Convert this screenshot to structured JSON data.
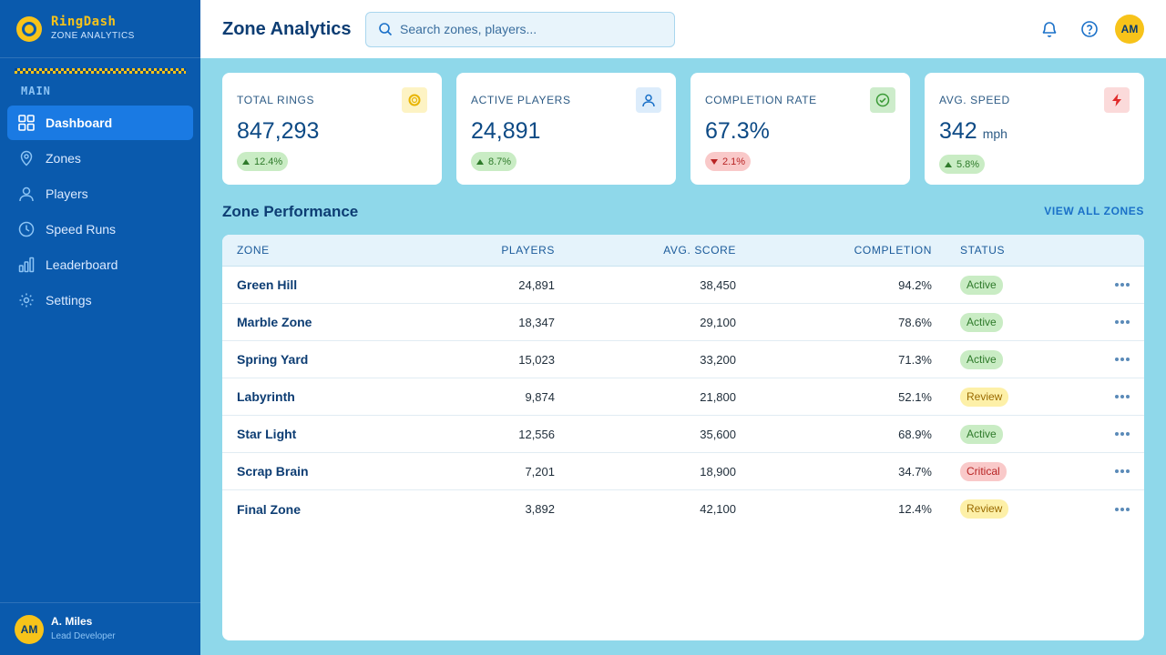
{
  "brand": {
    "name": "RingDash",
    "subtitle": "ZONE ANALYTICS"
  },
  "sidebar": {
    "section": "MAIN",
    "items": [
      {
        "label": "Dashboard",
        "icon": "grid-icon",
        "active": true
      },
      {
        "label": "Zones",
        "icon": "map-pin-icon"
      },
      {
        "label": "Players",
        "icon": "user-icon"
      },
      {
        "label": "Speed Runs",
        "icon": "clock-icon"
      },
      {
        "label": "Leaderboard",
        "icon": "bar-chart-icon"
      },
      {
        "label": "Settings",
        "icon": "gear-icon"
      }
    ],
    "user": {
      "initials": "AM",
      "name": "A. Miles",
      "role": "Lead Developer"
    }
  },
  "header": {
    "title": "Zone Analytics",
    "search_placeholder": "Search zones, players...",
    "avatar_initials": "AM"
  },
  "stats": [
    {
      "label": "TOTAL RINGS",
      "value": "847,293",
      "unit": "",
      "delta": "12.4%",
      "direction": "up",
      "icon": "ring-icon",
      "icon_bg": "#fdf3c4",
      "icon_color": "#e8b400"
    },
    {
      "label": "ACTIVE PLAYERS",
      "value": "24,891",
      "unit": "",
      "delta": "8.7%",
      "direction": "up",
      "icon": "user-icon",
      "icon_bg": "#dcecfb",
      "icon_color": "#1a70c8"
    },
    {
      "label": "COMPLETION RATE",
      "value": "67.3%",
      "unit": "",
      "delta": "2.1%",
      "direction": "down",
      "icon": "check-circle-icon",
      "icon_bg": "#cdeccb",
      "icon_color": "#3a9a36"
    },
    {
      "label": "AVG. SPEED",
      "value": "342",
      "unit": "mph",
      "delta": "5.8%",
      "direction": "up",
      "icon": "lightning-icon",
      "icon_bg": "#fbdada",
      "icon_color": "#e02a2a"
    }
  ],
  "zones": {
    "title": "Zone Performance",
    "view_all": "VIEW ALL ZONES",
    "columns": {
      "zone": "ZONE",
      "players": "PLAYERS",
      "score": "AVG. SCORE",
      "completion": "COMPLETION",
      "status": "STATUS"
    },
    "rows": [
      {
        "zone": "Green Hill",
        "players": "24,891",
        "score": "38,450",
        "completion": "94.2%",
        "status": "Active"
      },
      {
        "zone": "Marble Zone",
        "players": "18,347",
        "score": "29,100",
        "completion": "78.6%",
        "status": "Active"
      },
      {
        "zone": "Spring Yard",
        "players": "15,023",
        "score": "33,200",
        "completion": "71.3%",
        "status": "Active"
      },
      {
        "zone": "Labyrinth",
        "players": "9,874",
        "score": "21,800",
        "completion": "52.1%",
        "status": "Review"
      },
      {
        "zone": "Star Light",
        "players": "12,556",
        "score": "35,600",
        "completion": "68.9%",
        "status": "Active"
      },
      {
        "zone": "Scrap Brain",
        "players": "7,201",
        "score": "18,900",
        "completion": "34.7%",
        "status": "Critical"
      },
      {
        "zone": "Final Zone",
        "players": "3,892",
        "score": "42,100",
        "completion": "12.4%",
        "status": "Review"
      }
    ]
  }
}
